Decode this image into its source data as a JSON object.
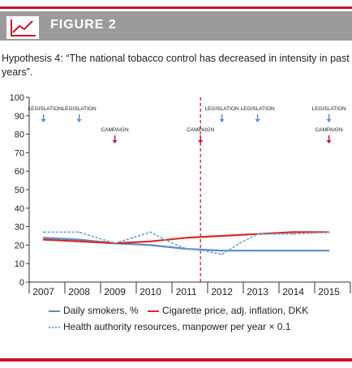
{
  "figure": {
    "label": "FIGURE 2",
    "icon": "line-chart-icon"
  },
  "hypothesis": "Hypothesis 4: “The national tobacco control has decreased in intensity in past years”.",
  "colors": {
    "accent": "#c8102e",
    "header_bg": "#9b9b9b",
    "blue": "#5b8bc0",
    "red": "#d42a2a",
    "dashed": "#6fa8d6"
  },
  "chart_data": {
    "type": "line",
    "x": [
      2007,
      2008,
      2009,
      2010,
      2011,
      2012,
      2013,
      2014,
      2015
    ],
    "xlabels": [
      "2007",
      "2008",
      "2009",
      "2010",
      "2011",
      "2012",
      "2013",
      "2014",
      "2015"
    ],
    "ylim": [
      0,
      100
    ],
    "yticks": [
      0,
      10,
      20,
      30,
      40,
      50,
      60,
      70,
      80,
      90,
      100
    ],
    "series": [
      {
        "name": "Daily smokers, %",
        "color": "#5b8bc0",
        "style": "solid",
        "x": [
          2007,
          2008,
          2009,
          2010,
          2011,
          2012,
          2013,
          2014,
          2015
        ],
        "values": [
          24,
          23,
          21,
          20,
          18,
          17,
          17,
          17,
          17
        ]
      },
      {
        "name": "Cigarette price, adj. inflation, DKK",
        "color": "#d42a2a",
        "style": "solid",
        "x": [
          2007,
          2008,
          2009,
          2010,
          2011,
          2012,
          2013,
          2014,
          2015
        ],
        "values": [
          23,
          22,
          21,
          22,
          24,
          25,
          26,
          27,
          27
        ]
      },
      {
        "name": "Health authority resources, manpower per year × 0.1",
        "color": "#6fa8d6",
        "style": "dashed",
        "x": [
          2007,
          2008,
          2009,
          2009.5,
          2010,
          2010.5,
          2011,
          2011.5,
          2012,
          2012.5,
          2013,
          2014,
          2015
        ],
        "values": [
          27,
          27,
          21,
          24,
          27,
          22,
          18,
          17,
          15,
          21,
          26,
          26,
          27
        ]
      }
    ],
    "divider_x": 2011.4,
    "annotations": [
      {
        "text": "LEGISLATION",
        "x": 2007,
        "kind": "legislation"
      },
      {
        "text": "LEGISLATION",
        "x": 2008,
        "kind": "legislation"
      },
      {
        "text": "CAMPAIGN",
        "x": 2009,
        "kind": "campaign"
      },
      {
        "text": "LEGISLATION",
        "x": 2012,
        "kind": "legislation"
      },
      {
        "text": "LEGISLATION",
        "x": 2013,
        "kind": "legislation"
      },
      {
        "text": "CAMPAIGN",
        "x": 2011.4,
        "kind": "campaign"
      },
      {
        "text": "LEGISLATION",
        "x": 2015,
        "kind": "legislation"
      },
      {
        "text": "CAMPAIGN",
        "x": 2015,
        "kind": "campaign"
      }
    ]
  }
}
